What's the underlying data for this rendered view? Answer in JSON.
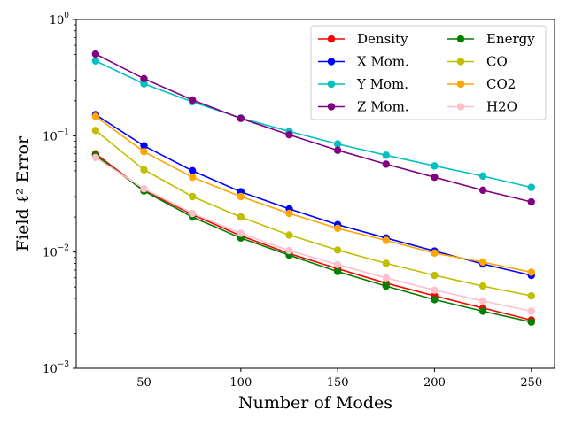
{
  "chart_data": {
    "type": "line",
    "xlabel": "Number of Modes",
    "ylabel": "Field ℓ² Error",
    "xlim": [
      15,
      262
    ],
    "ylim": [
      0.001,
      1
    ],
    "yscale": "log",
    "grid": false,
    "legend_position": "top-right",
    "x": [
      25,
      50,
      75,
      100,
      125,
      150,
      175,
      200,
      225,
      250
    ],
    "xticks": [
      50,
      100,
      150,
      200,
      250
    ],
    "yticks": [
      {
        "value": 0.001,
        "label": "10",
        "exp": "−3"
      },
      {
        "value": 0.01,
        "label": "10",
        "exp": "−2"
      },
      {
        "value": 0.1,
        "label": "10",
        "exp": "−1"
      },
      {
        "value": 1,
        "label": "10",
        "exp": "0"
      }
    ],
    "series": [
      {
        "name": "Density",
        "color": "#ff0000",
        "values": [
          0.07,
          0.034,
          0.021,
          0.0138,
          0.0097,
          0.0072,
          0.0054,
          0.0042,
          0.0033,
          0.0026
        ]
      },
      {
        "name": "X Mom.",
        "color": "#0000ff",
        "values": [
          0.152,
          0.082,
          0.05,
          0.033,
          0.0235,
          0.0172,
          0.0132,
          0.0102,
          0.0079,
          0.0063
        ]
      },
      {
        "name": "Y Mom.",
        "color": "#00bfbf",
        "values": [
          0.44,
          0.28,
          0.196,
          0.142,
          0.109,
          0.085,
          0.068,
          0.055,
          0.045,
          0.036
        ]
      },
      {
        "name": "Z Mom.",
        "color": "#800080",
        "values": [
          0.505,
          0.31,
          0.203,
          0.141,
          0.102,
          0.075,
          0.057,
          0.044,
          0.034,
          0.027
        ]
      },
      {
        "name": "Energy",
        "color": "#008000",
        "values": [
          0.068,
          0.0335,
          0.02,
          0.0132,
          0.0094,
          0.0068,
          0.0051,
          0.0039,
          0.0031,
          0.0025
        ]
      },
      {
        "name": "CO",
        "color": "#bfbf00",
        "values": [
          0.111,
          0.051,
          0.03,
          0.02,
          0.014,
          0.0104,
          0.008,
          0.0063,
          0.0051,
          0.0042
        ]
      },
      {
        "name": "CO2",
        "color": "#ffa500",
        "values": [
          0.147,
          0.073,
          0.044,
          0.03,
          0.0215,
          0.016,
          0.0126,
          0.0098,
          0.0082,
          0.0067
        ]
      },
      {
        "name": "H2O",
        "color": "#ffc0cb",
        "values": [
          0.065,
          0.035,
          0.0215,
          0.0145,
          0.0103,
          0.0078,
          0.006,
          0.0047,
          0.0038,
          0.0031
        ]
      }
    ]
  }
}
